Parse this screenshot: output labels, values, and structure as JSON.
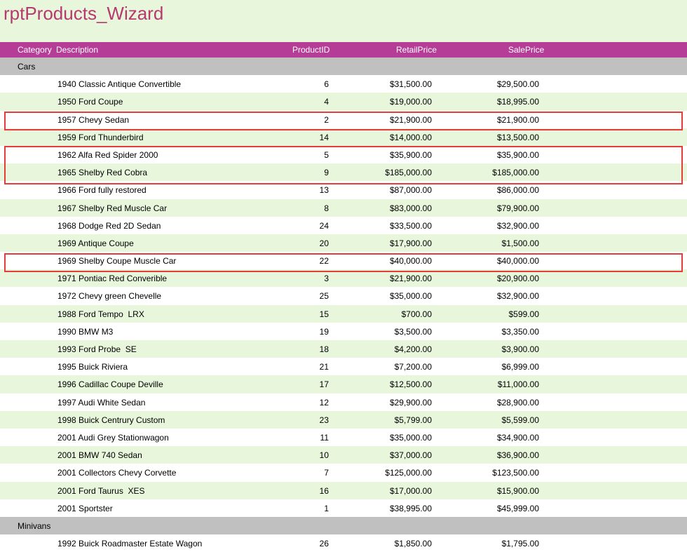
{
  "report": {
    "title": "rptProducts_Wizard"
  },
  "columns": {
    "category": "Category",
    "description": "Description",
    "product_id": "ProductID",
    "retail_price": "RetailPrice",
    "sale_price": "SalePrice"
  },
  "groups": [
    {
      "name": "Cars",
      "rows": [
        {
          "description": "1940 Classic Antique Convertible",
          "product_id": "6",
          "retail_price": "$31,500.00",
          "sale_price": "$29,500.00"
        },
        {
          "description": "1950 Ford Coupe",
          "product_id": "4",
          "retail_price": "$19,000.00",
          "sale_price": "$18,995.00"
        },
        {
          "description": "1957 Chevy Sedan",
          "product_id": "2",
          "retail_price": "$21,900.00",
          "sale_price": "$21,900.00"
        },
        {
          "description": "1959 Ford Thunderbird",
          "product_id": "14",
          "retail_price": "$14,000.00",
          "sale_price": "$13,500.00"
        },
        {
          "description": "1962 Alfa Red Spider 2000",
          "product_id": "5",
          "retail_price": "$35,900.00",
          "sale_price": "$35,900.00"
        },
        {
          "description": "1965 Shelby Red Cobra",
          "product_id": "9",
          "retail_price": "$185,000.00",
          "sale_price": "$185,000.00"
        },
        {
          "description": "1966 Ford fully restored",
          "product_id": "13",
          "retail_price": "$87,000.00",
          "sale_price": "$86,000.00"
        },
        {
          "description": "1967 Shelby Red Muscle Car",
          "product_id": "8",
          "retail_price": "$83,000.00",
          "sale_price": "$79,900.00"
        },
        {
          "description": "1968 Dodge Red 2D Sedan",
          "product_id": "24",
          "retail_price": "$33,500.00",
          "sale_price": "$32,900.00"
        },
        {
          "description": "1969 Antique Coupe",
          "product_id": "20",
          "retail_price": "$17,900.00",
          "sale_price": "$1,500.00"
        },
        {
          "description": "1969 Shelby Coupe Muscle Car",
          "product_id": "22",
          "retail_price": "$40,000.00",
          "sale_price": "$40,000.00"
        },
        {
          "description": "1971 Pontiac Red Converible",
          "product_id": "3",
          "retail_price": "$21,900.00",
          "sale_price": "$20,900.00"
        },
        {
          "description": "1972 Chevy green Chevelle",
          "product_id": "25",
          "retail_price": "$35,000.00",
          "sale_price": "$32,900.00"
        },
        {
          "description": "1988 Ford Tempo  LRX",
          "product_id": "15",
          "retail_price": "$700.00",
          "sale_price": "$599.00"
        },
        {
          "description": "1990 BMW M3",
          "product_id": "19",
          "retail_price": "$3,500.00",
          "sale_price": "$3,350.00"
        },
        {
          "description": "1993 Ford Probe  SE",
          "product_id": "18",
          "retail_price": "$4,200.00",
          "sale_price": "$3,900.00"
        },
        {
          "description": "1995 Buick Riviera",
          "product_id": "21",
          "retail_price": "$7,200.00",
          "sale_price": "$6,999.00"
        },
        {
          "description": "1996 Cadillac Coupe Deville",
          "product_id": "17",
          "retail_price": "$12,500.00",
          "sale_price": "$11,000.00"
        },
        {
          "description": "1997 Audi White Sedan",
          "product_id": "12",
          "retail_price": "$29,900.00",
          "sale_price": "$28,900.00"
        },
        {
          "description": "1998 Buick Centrury Custom",
          "product_id": "23",
          "retail_price": "$5,799.00",
          "sale_price": "$5,599.00"
        },
        {
          "description": "2001 Audi Grey Stationwagon",
          "product_id": "11",
          "retail_price": "$35,000.00",
          "sale_price": "$34,900.00"
        },
        {
          "description": "2001 BMW 740 Sedan",
          "product_id": "10",
          "retail_price": "$37,000.00",
          "sale_price": "$36,900.00"
        },
        {
          "description": "2001 Collectors Chevy Corvette",
          "product_id": "7",
          "retail_price": "$125,000.00",
          "sale_price": "$123,500.00"
        },
        {
          "description": "2001 Ford Taurus  XES",
          "product_id": "16",
          "retail_price": "$17,000.00",
          "sale_price": "$15,900.00"
        },
        {
          "description": "2001 Sportster",
          "product_id": "1",
          "retail_price": "$38,995.00",
          "sale_price": "$45,999.00"
        }
      ]
    },
    {
      "name": "Minivans",
      "rows": [
        {
          "description": "1992 Buick Roadmaster Estate Wagon",
          "product_id": "26",
          "retail_price": "$1,850.00",
          "sale_price": "$1,795.00"
        }
      ]
    }
  ],
  "highlight_color": "#e63c3c",
  "colors": {
    "header": "#b53d98",
    "title": "#b63a6e",
    "band": "#e8f6dc",
    "group": "#c0c0c0"
  }
}
